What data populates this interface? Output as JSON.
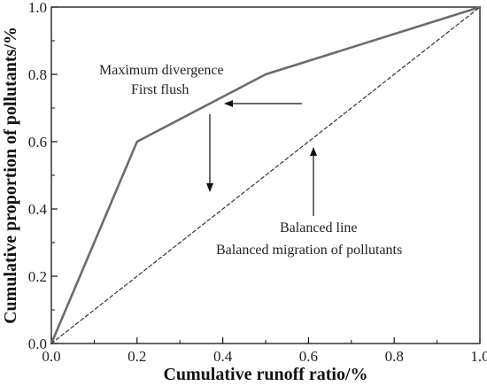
{
  "chart_data": {
    "type": "line",
    "xlabel": "Cumulative runoff ratio/%",
    "ylabel": "Cumulative proportion of pollutants/%",
    "xlim": [
      0,
      1
    ],
    "ylim": [
      0,
      1
    ],
    "xticks": [
      "0.0",
      "0.2",
      "0.4",
      "0.6",
      "0.8",
      "1.0"
    ],
    "yticks": [
      "0.0",
      "0.2",
      "0.4",
      "0.6",
      "0.8",
      "1.0"
    ],
    "grid": false,
    "series": [
      {
        "x": [
          0,
          0.2,
          0.5,
          1.0
        ],
        "y": [
          0,
          0.6,
          0.8,
          1.0
        ],
        "color": "#6b6b6b",
        "style": "solid"
      },
      {
        "x": [
          0,
          1.0
        ],
        "y": [
          0,
          1.0
        ],
        "color": "#333333",
        "style": "dashed"
      }
    ],
    "annotations": [
      {
        "lines": [
          "Maximum divergence",
          "First flush"
        ]
      },
      {
        "lines": [
          "Balanced line",
          "Balanced migration of pollutants"
        ]
      }
    ]
  }
}
